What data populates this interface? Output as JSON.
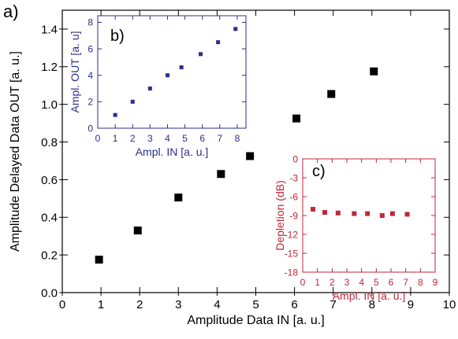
{
  "chart_data": [
    {
      "type": "scatter",
      "panel_label": "a)",
      "xlabel": "Amplitude Data IN [a. u.]",
      "ylabel": "Amplitude Delayed Data OUT [a. u.]",
      "xlim": [
        0,
        10
      ],
      "ylim": [
        0,
        1.5
      ],
      "xticks": [
        "0",
        "1",
        "2",
        "3",
        "4",
        "5",
        "6",
        "7",
        "8",
        "9",
        "10"
      ],
      "yticks": [
        "0.0",
        "0.2",
        "0.4",
        "0.6",
        "0.8",
        "1.0",
        "1.2",
        "1.4"
      ],
      "x": [
        0.95,
        1.95,
        3.0,
        4.1,
        4.85,
        6.05,
        6.95,
        8.05
      ],
      "y": [
        0.175,
        0.33,
        0.505,
        0.63,
        0.725,
        0.925,
        1.055,
        1.175
      ],
      "color": "#000000"
    },
    {
      "type": "scatter",
      "panel_label": "b)",
      "xlabel": "Ampl. IN [a. u.]",
      "ylabel": "Ampl. OUT [a. u]",
      "xlim": [
        0,
        8.5
      ],
      "ylim": [
        0,
        8.5
      ],
      "xticks": [
        "0",
        "1",
        "2",
        "3",
        "4",
        "5",
        "6",
        "7",
        "8"
      ],
      "yticks": [
        "0",
        "2",
        "4",
        "6",
        "8"
      ],
      "x": [
        1.0,
        2.0,
        3.0,
        4.0,
        4.8,
        5.9,
        6.9,
        7.9
      ],
      "y": [
        1.0,
        2.0,
        3.0,
        4.0,
        4.6,
        5.6,
        6.5,
        7.5
      ],
      "color": "#2b2f8a"
    },
    {
      "type": "scatter",
      "panel_label": "c)",
      "xlabel": "Ampl. IN [a. u.]",
      "ylabel": "Depletion (dB)",
      "xlim": [
        0,
        9
      ],
      "ylim": [
        -18,
        0
      ],
      "xticks": [
        "0",
        "1",
        "2",
        "3",
        "4",
        "5",
        "6",
        "7",
        "8",
        "9"
      ],
      "yticks": [
        "0",
        "-3",
        "-6",
        "-9",
        "-12",
        "-15",
        "-18"
      ],
      "x": [
        0.7,
        1.5,
        2.4,
        3.5,
        4.4,
        5.4,
        6.1,
        7.1
      ],
      "y": [
        -8.0,
        -8.5,
        -8.6,
        -8.7,
        -8.7,
        -9.0,
        -8.7,
        -8.8
      ],
      "color": "#c0273a"
    }
  ]
}
